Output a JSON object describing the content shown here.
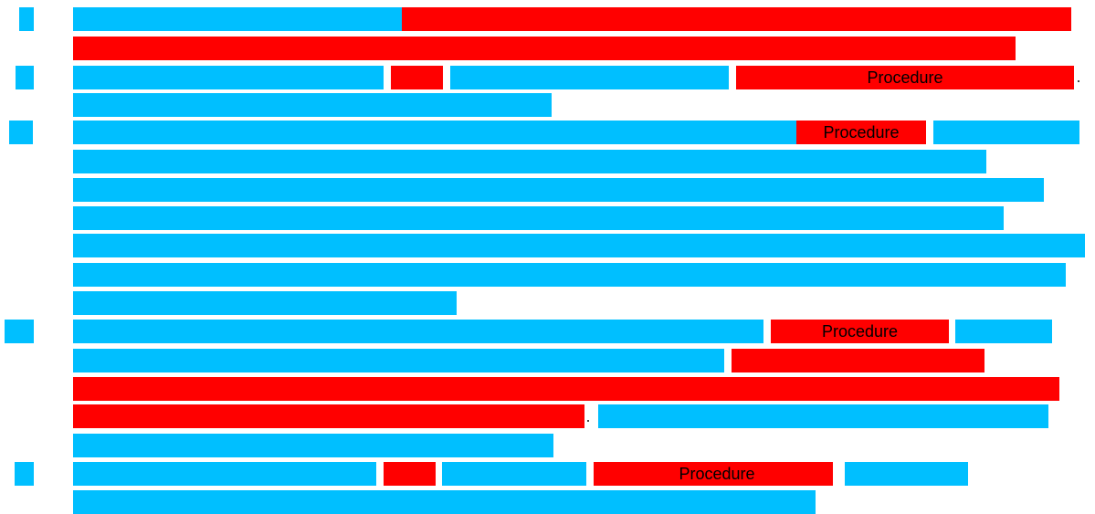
{
  "colors": {
    "blue": "#00bfff",
    "red": "#ff0000",
    "label_text": "#000000"
  },
  "legend_terms": {
    "highlight_label": "Procedure"
  },
  "labels": {
    "row3": "Procedure",
    "row5": "Procedure",
    "row12": "Procedure",
    "row17": "Procedure"
  }
}
